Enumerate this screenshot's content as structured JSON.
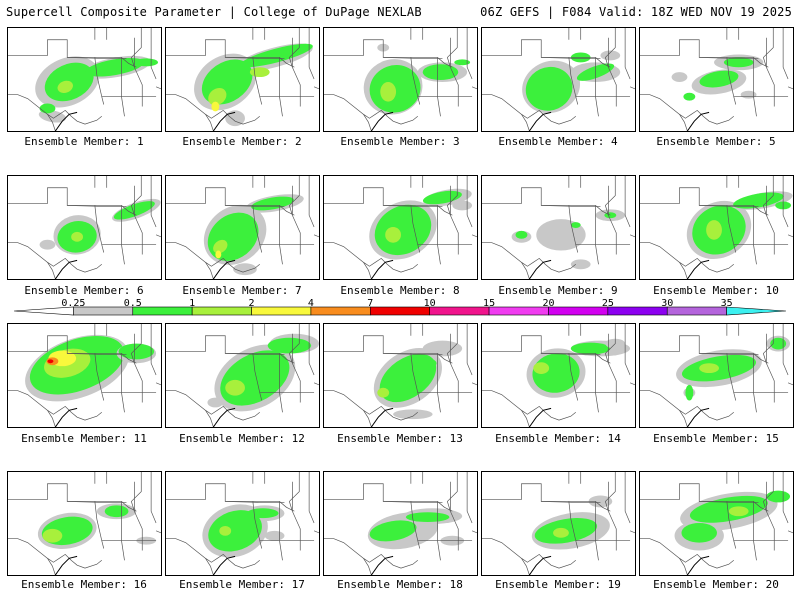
{
  "header": {
    "title": "Supercell Composite Parameter | College of DuPage NEXLAB",
    "run_info": "06Z GEFS | F084 Valid: 18Z WED NOV 19 2025"
  },
  "colorbar": {
    "levels": [
      "0.25",
      "0.5",
      "1",
      "2",
      "4",
      "7",
      "10",
      "15",
      "20",
      "25",
      "30",
      "35"
    ],
    "colors": [
      "#ffffff",
      "#c8c8c8",
      "#3cf03c",
      "#a8f03c",
      "#f8f83c",
      "#f88c1e",
      "#f00000",
      "#f0148c",
      "#f03cf0",
      "#d200f0",
      "#8c00f0",
      "#b464dc",
      "#3cf0f0"
    ]
  },
  "map_colors": {
    "light": "#c8c8c8",
    "green": "#3cf03c",
    "lime": "#a8f03c",
    "yellow": "#f8f83c",
    "orange": "#f88c1e",
    "red": "#f00000"
  },
  "panels": [
    {
      "label": "Ensemble Member: 1"
    },
    {
      "label": "Ensemble Member: 2"
    },
    {
      "label": "Ensemble Member: 3"
    },
    {
      "label": "Ensemble Member: 4"
    },
    {
      "label": "Ensemble Member: 5"
    },
    {
      "label": "Ensemble Member: 6"
    },
    {
      "label": "Ensemble Member: 7"
    },
    {
      "label": "Ensemble Member: 8"
    },
    {
      "label": "Ensemble Member: 9"
    },
    {
      "label": "Ensemble Member: 10"
    },
    {
      "label": "Ensemble Member: 11"
    },
    {
      "label": "Ensemble Member: 12"
    },
    {
      "label": "Ensemble Member: 13"
    },
    {
      "label": "Ensemble Member: 14"
    },
    {
      "label": "Ensemble Member: 15"
    },
    {
      "label": "Ensemble Member: 16"
    },
    {
      "label": "Ensemble Member: 17"
    },
    {
      "label": "Ensemble Member: 18"
    },
    {
      "label": "Ensemble Member: 19"
    },
    {
      "label": "Ensemble Member: 20"
    }
  ]
}
